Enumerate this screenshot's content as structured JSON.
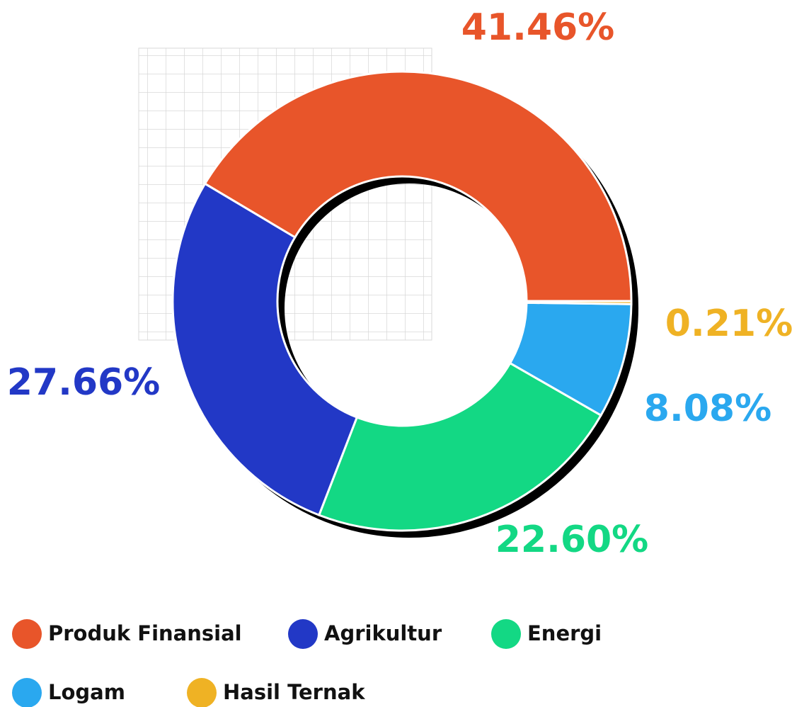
{
  "chart_data": {
    "type": "donut",
    "categories": [
      "Produk Finansial",
      "Agrikultur",
      "Energi",
      "Logam",
      "Hasil Ternak"
    ],
    "values": [
      41.46,
      27.66,
      22.6,
      8.08,
      0.21
    ],
    "value_labels": [
      "41.46%",
      "27.66%",
      "22.60%",
      "8.08%",
      "0.21%"
    ],
    "colors": [
      "#e8552a",
      "#2238c6",
      "#13d884",
      "#2aa8ef",
      "#efb224"
    ]
  }
}
